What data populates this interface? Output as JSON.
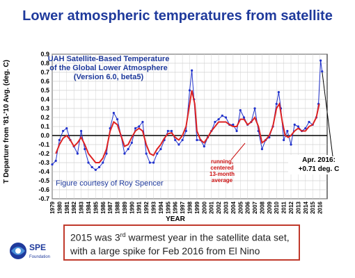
{
  "slide": {
    "title": "Lower atmospheric temperatures from satellite",
    "caption_line1_before": "2015 was 3",
    "caption_line1_sup": "rd",
    "caption_line1_after": " warmest year in the satellite data set,",
    "caption_line2": "with a large spike for Feb 2016 from El Nino",
    "logo_text": "SPE",
    "logo_subtext": "Foundation"
  },
  "colors": {
    "title": "#1f3a9c",
    "monthly_series": "#2233cc",
    "running_mean": "#dd2222",
    "caption_border": "#c0392b",
    "annotation_red": "#cc1111"
  },
  "chart_data": {
    "type": "line",
    "title": "UAH Satellite-Based Temperature of the Global Lower Atmosphere (Version 6.0, beta5)",
    "title_lines": [
      "UAH Satellite-Based Temperature",
      "of the Global Lower Atmosphere",
      "(Version 6.0, beta5)"
    ],
    "credit": "Figure courtesy of Roy Spencer",
    "xlabel": "YEAR",
    "ylabel": "T Departure from '81-'10 Avg. (deg. C)",
    "xlim": [
      1979,
      2017
    ],
    "ylim": [
      -0.7,
      0.9
    ],
    "grid": true,
    "yticks": [
      -0.7,
      -0.6,
      -0.5,
      -0.4,
      -0.3,
      -0.2,
      -0.1,
      0.0,
      0.1,
      0.2,
      0.3,
      0.4,
      0.5,
      0.6,
      0.7,
      0.8,
      0.9
    ],
    "ytick_labels": [
      "-0.7",
      "-0.6",
      "-0.5",
      "-0.4",
      "-0.3",
      "-0.2",
      "-0.1",
      "0.0",
      "0.1",
      "0.2",
      "0.3",
      "0.4",
      "0.5",
      "0.6",
      "0.7",
      "0.8",
      "0.9"
    ],
    "xticks": [
      "1979",
      "1980",
      "1981",
      "1982",
      "1983",
      "1984",
      "1985",
      "1986",
      "1987",
      "1988",
      "1989",
      "1990",
      "1991",
      "1992",
      "1993",
      "1994",
      "1995",
      "1996",
      "1997",
      "1998",
      "1999",
      "2000",
      "2001",
      "2002",
      "2003",
      "2004",
      "2005",
      "2006",
      "2007",
      "2008",
      "2009",
      "2010",
      "2011",
      "2012",
      "2013",
      "2014",
      "2015",
      "2016"
    ],
    "annotations": {
      "running_mean_label": [
        "running,",
        "centered",
        "13-month",
        "average"
      ],
      "latest_label": [
        "Apr. 2016:",
        "+0.71 deg. C"
      ]
    },
    "series": [
      {
        "x": [
          1979.0,
          1979.5,
          1980.0,
          1980.5,
          1981.0,
          1981.5,
          1982.0,
          1982.5,
          1983.0,
          1983.5,
          1984.0,
          1984.5,
          1985.0,
          1985.5,
          1986.0,
          1986.5,
          1987.0,
          1987.5,
          1988.0,
          1988.5,
          1989.0,
          1989.5,
          1990.0,
          1990.5,
          1991.0,
          1991.5,
          1992.0,
          1992.5,
          1993.0,
          1993.5,
          1994.0,
          1994.5,
          1995.0,
          1995.5,
          1996.0,
          1996.5,
          1997.0,
          1997.5,
          1998.0,
          1998.3,
          1998.6,
          1999.0,
          1999.5,
          2000.0,
          2000.5,
          2001.0,
          2001.5,
          2002.0,
          2002.5,
          2003.0,
          2003.5,
          2004.0,
          2004.5,
          2005.0,
          2005.5,
          2006.0,
          2006.5,
          2007.0,
          2007.5,
          2008.0,
          2008.5,
          2009.0,
          2009.5,
          2010.0,
          2010.3,
          2010.6,
          2011.0,
          2011.5,
          2012.0,
          2012.5,
          2013.0,
          2013.5,
          2014.0,
          2014.5,
          2015.0,
          2015.5,
          2015.8,
          2016.1,
          2016.3
        ],
        "values": [
          -0.32,
          -0.28,
          -0.05,
          0.05,
          0.08,
          -0.05,
          -0.12,
          -0.2,
          0.05,
          -0.15,
          -0.3,
          -0.35,
          -0.38,
          -0.35,
          -0.3,
          -0.2,
          0.08,
          0.25,
          0.18,
          0.0,
          -0.2,
          -0.15,
          -0.08,
          0.08,
          0.1,
          0.15,
          -0.2,
          -0.3,
          -0.3,
          -0.2,
          -0.15,
          -0.05,
          0.05,
          0.05,
          -0.05,
          -0.1,
          -0.05,
          0.05,
          0.5,
          0.72,
          0.4,
          -0.05,
          -0.05,
          -0.12,
          -0.02,
          0.05,
          0.15,
          0.18,
          0.22,
          0.2,
          0.12,
          0.12,
          0.05,
          0.28,
          0.2,
          0.12,
          0.15,
          0.3,
          0.05,
          -0.15,
          -0.05,
          -0.02,
          0.1,
          0.35,
          0.48,
          0.3,
          -0.05,
          0.05,
          -0.1,
          0.12,
          0.1,
          0.05,
          0.08,
          0.15,
          0.12,
          0.2,
          0.35,
          0.83,
          0.71
        ]
      },
      {
        "x": [
          1979.5,
          1980.0,
          1980.5,
          1981.0,
          1981.5,
          1982.0,
          1982.5,
          1983.0,
          1983.5,
          1984.0,
          1984.5,
          1985.0,
          1985.5,
          1986.0,
          1986.5,
          1987.0,
          1987.5,
          1988.0,
          1988.5,
          1989.0,
          1989.5,
          1990.0,
          1990.5,
          1991.0,
          1991.5,
          1992.0,
          1992.5,
          1993.0,
          1993.5,
          1994.0,
          1994.5,
          1995.0,
          1995.5,
          1996.0,
          1996.5,
          1997.0,
          1997.5,
          1998.0,
          1998.3,
          1998.7,
          1999.0,
          1999.5,
          2000.0,
          2000.5,
          2001.0,
          2001.5,
          2002.0,
          2002.5,
          2003.0,
          2003.5,
          2004.0,
          2004.5,
          2005.0,
          2005.5,
          2006.0,
          2006.5,
          2007.0,
          2007.5,
          2008.0,
          2008.5,
          2009.0,
          2009.5,
          2010.0,
          2010.4,
          2010.8,
          2011.2,
          2011.6,
          2012.0,
          2012.5,
          2013.0,
          2013.5,
          2014.0,
          2014.5,
          2015.0,
          2015.5,
          2015.9
        ],
        "values": [
          -0.2,
          -0.1,
          -0.03,
          0.0,
          -0.05,
          -0.12,
          -0.08,
          -0.02,
          -0.1,
          -0.2,
          -0.25,
          -0.3,
          -0.3,
          -0.25,
          -0.15,
          0.05,
          0.15,
          0.12,
          0.0,
          -0.12,
          -0.1,
          -0.02,
          0.05,
          0.08,
          0.05,
          -0.1,
          -0.2,
          -0.22,
          -0.15,
          -0.1,
          -0.03,
          0.02,
          0.03,
          -0.02,
          -0.05,
          0.0,
          0.1,
          0.35,
          0.5,
          0.35,
          0.05,
          -0.05,
          -0.08,
          -0.02,
          0.05,
          0.1,
          0.15,
          0.15,
          0.15,
          0.12,
          0.1,
          0.1,
          0.18,
          0.18,
          0.12,
          0.15,
          0.2,
          0.1,
          -0.08,
          -0.05,
          0.0,
          0.1,
          0.3,
          0.35,
          0.15,
          0.0,
          -0.02,
          0.0,
          0.05,
          0.08,
          0.05,
          0.05,
          0.1,
          0.12,
          0.2,
          0.35
        ]
      }
    ]
  }
}
